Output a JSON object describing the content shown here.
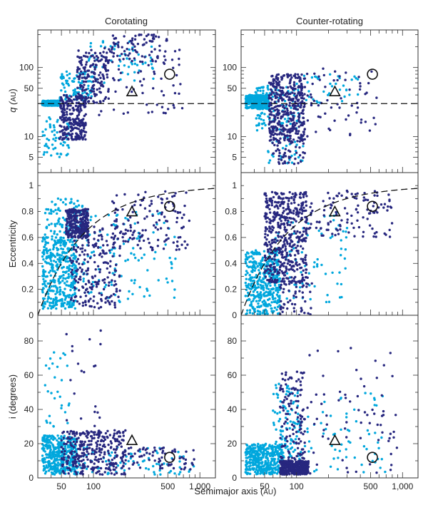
{
  "figure": {
    "column_titles": [
      "Corotating",
      "Counter-rotating"
    ],
    "xlabel_main": "Semimajor axis (",
    "xlabel_unit": "AU",
    "xlabel_close": ")"
  },
  "colors": {
    "light": "#00a7dd",
    "dark": "#27277f",
    "axis": "#333333"
  },
  "chart_data": [
    {
      "id": "q-corotating",
      "panel": "q",
      "column": "Corotating",
      "type": "scatter",
      "ylabel_main": "q (",
      "ylabel_unit": "AU",
      "ylabel_close": ")",
      "x_scale": "log",
      "y_scale": "log",
      "xlim": [
        30,
        1400
      ],
      "ylim": [
        3,
        350
      ],
      "yticks": [
        {
          "v": 5,
          "label": "5"
        },
        {
          "v": 10,
          "label": "10"
        },
        {
          "v": 50,
          "label": "50"
        },
        {
          "v": 100,
          "label": "100"
        }
      ],
      "reference_line": {
        "style": "dashed",
        "y": 30
      },
      "markers": [
        {
          "symbol": "triangle",
          "x": 230,
          "y": 45
        },
        {
          "symbol": "circle",
          "x": 520,
          "y": 80
        }
      ],
      "series": [
        {
          "color": "light",
          "clusters": [
            [
              33,
              48,
              28,
              33,
              380
            ],
            [
              48,
              100,
              33,
              90,
              90
            ],
            [
              90,
              400,
              60,
              250,
              60
            ],
            [
              33,
              60,
              5,
              20,
              60
            ]
          ]
        },
        {
          "color": "dark",
          "clusters": [
            [
              48,
              85,
              9,
              40,
              260
            ],
            [
              70,
              140,
              30,
              180,
              160
            ],
            [
              140,
              500,
              120,
              300,
              80
            ],
            [
              100,
              700,
              20,
              200,
              70
            ]
          ]
        }
      ]
    },
    {
      "id": "q-counter",
      "panel": "q",
      "column": "Counter-rotating",
      "type": "scatter",
      "x_scale": "log",
      "y_scale": "log",
      "xlim": [
        30,
        1400
      ],
      "ylim": [
        3,
        350
      ],
      "yticks": [
        {
          "v": 5,
          "label": "5"
        },
        {
          "v": 10,
          "label": "10"
        },
        {
          "v": 50,
          "label": "50"
        },
        {
          "v": 100,
          "label": "100"
        }
      ],
      "reference_line": {
        "style": "dashed",
        "y": 30
      },
      "markers": [
        {
          "symbol": "triangle",
          "x": 230,
          "y": 45
        },
        {
          "symbol": "circle",
          "x": 520,
          "y": 80
        }
      ],
      "series": [
        {
          "color": "light",
          "clusters": [
            [
              33,
              55,
              25,
              40,
              350
            ],
            [
              40,
              110,
              12,
              55,
              120
            ],
            [
              100,
              400,
              30,
              80,
              40
            ],
            [
              50,
              120,
              4,
              10,
              30
            ]
          ]
        },
        {
          "color": "dark",
          "clusters": [
            [
              55,
              120,
              8,
              80,
              420
            ],
            [
              60,
              120,
              4,
              8,
              40
            ],
            [
              120,
              600,
              10,
              100,
              60
            ]
          ]
        }
      ]
    },
    {
      "id": "e-corotating",
      "panel": "e",
      "column": "Corotating",
      "type": "scatter",
      "ylabel_main": "Eccentricity",
      "x_scale": "log",
      "y_scale": "linear",
      "xlim": [
        30,
        1400
      ],
      "ylim": [
        0,
        1.1
      ],
      "yticks": [
        {
          "v": 0,
          "label": "0"
        },
        {
          "v": 0.2,
          "label": "0.2"
        },
        {
          "v": 0.4,
          "label": "0.4"
        },
        {
          "v": 0.6,
          "label": "0.6"
        },
        {
          "v": 0.8,
          "label": "0.8"
        },
        {
          "v": 1,
          "label": "1"
        }
      ],
      "reference_line": {
        "style": "dashed",
        "q": 30
      },
      "markers": [
        {
          "symbol": "triangle",
          "x": 230,
          "y": 0.8
        },
        {
          "symbol": "circle",
          "x": 520,
          "y": 0.84
        }
      ],
      "series": [
        {
          "color": "light",
          "clusters": [
            [
              33,
              70,
              0.05,
              0.6,
              400
            ],
            [
              35,
              80,
              0.6,
              0.9,
              100
            ],
            [
              80,
              600,
              0.1,
              0.8,
              120
            ]
          ]
        },
        {
          "color": "dark",
          "clusters": [
            [
              55,
              90,
              0.6,
              0.82,
              250
            ],
            [
              60,
              180,
              0.05,
              0.7,
              220
            ],
            [
              150,
              800,
              0.5,
              0.96,
              140
            ]
          ]
        }
      ]
    },
    {
      "id": "e-counter",
      "panel": "e",
      "column": "Counter-rotating",
      "type": "scatter",
      "x_scale": "log",
      "y_scale": "linear",
      "xlim": [
        30,
        1400
      ],
      "ylim": [
        0,
        1.1
      ],
      "yticks": [
        {
          "v": 0,
          "label": "0"
        },
        {
          "v": 0.2,
          "label": "0.2"
        },
        {
          "v": 0.4,
          "label": "0.4"
        },
        {
          "v": 0.6,
          "label": "0.6"
        },
        {
          "v": 0.8,
          "label": "0.8"
        },
        {
          "v": 1,
          "label": "1"
        }
      ],
      "reference_line": {
        "style": "dashed",
        "q": 30
      },
      "markers": [
        {
          "symbol": "triangle",
          "x": 230,
          "y": 0.8
        },
        {
          "symbol": "circle",
          "x": 520,
          "y": 0.84
        }
      ],
      "series": [
        {
          "color": "light",
          "clusters": [
            [
              33,
              70,
              0.0,
              0.5,
              400
            ],
            [
              60,
              300,
              0.1,
              0.8,
              80
            ]
          ]
        },
        {
          "color": "dark",
          "clusters": [
            [
              50,
              125,
              0.25,
              0.95,
              480
            ],
            [
              120,
              800,
              0.6,
              0.96,
              120
            ],
            [
              70,
              140,
              0.0,
              0.3,
              60
            ]
          ]
        }
      ]
    },
    {
      "id": "i-corotating",
      "panel": "i",
      "column": "Corotating",
      "type": "scatter",
      "ylabel_main": "i (degrees)",
      "x_scale": "log",
      "y_scale": "linear",
      "xlim": [
        30,
        1400
      ],
      "ylim": [
        0,
        95
      ],
      "yticks": [
        {
          "v": 0,
          "label": "0"
        },
        {
          "v": 20,
          "label": "20"
        },
        {
          "v": 40,
          "label": "40"
        },
        {
          "v": 60,
          "label": "60"
        },
        {
          "v": 80,
          "label": "80"
        }
      ],
      "markers": [
        {
          "symbol": "triangle",
          "x": 230,
          "y": 22
        },
        {
          "symbol": "circle",
          "x": 520,
          "y": 12
        }
      ],
      "series": [
        {
          "color": "light",
          "clusters": [
            [
              33,
              70,
              2,
              25,
              380
            ],
            [
              40,
              900,
              2,
              18,
              100
            ],
            [
              35,
              60,
              30,
              75,
              30
            ]
          ]
        },
        {
          "color": "dark",
          "clusters": [
            [
              50,
              200,
              2,
              28,
              330
            ],
            [
              200,
              900,
              5,
              18,
              70
            ],
            [
              50,
              120,
              30,
              90,
              20
            ]
          ]
        }
      ]
    },
    {
      "id": "i-counter",
      "panel": "i",
      "column": "Counter-rotating",
      "type": "scatter",
      "x_scale": "log",
      "y_scale": "linear",
      "xlim": [
        30,
        1400
      ],
      "ylim": [
        0,
        95
      ],
      "yticks": [
        {
          "v": 0,
          "label": "0"
        },
        {
          "v": 20,
          "label": "20"
        },
        {
          "v": 40,
          "label": "40"
        },
        {
          "v": 60,
          "label": "60"
        },
        {
          "v": 80,
          "label": "80"
        }
      ],
      "xticks": [
        {
          "v": 50,
          "label": "50"
        },
        {
          "v": 100,
          "label": "100"
        },
        {
          "v": 500,
          "label": "500"
        },
        {
          "v": 1000,
          "label": "1,000"
        }
      ],
      "markers": [
        {
          "symbol": "triangle",
          "x": 230,
          "y": 22
        },
        {
          "symbol": "circle",
          "x": 520,
          "y": 12
        }
      ],
      "series": [
        {
          "color": "light",
          "clusters": [
            [
              33,
              75,
              2,
              20,
              380
            ],
            [
              60,
              110,
              10,
              55,
              100
            ],
            [
              100,
              700,
              2,
              50,
              70
            ]
          ]
        },
        {
          "color": "dark",
          "clusters": [
            [
              70,
              130,
              2,
              10,
              360
            ],
            [
              70,
              120,
              10,
              62,
              130
            ],
            [
              120,
              900,
              2,
              80,
              70
            ]
          ]
        }
      ]
    }
  ]
}
